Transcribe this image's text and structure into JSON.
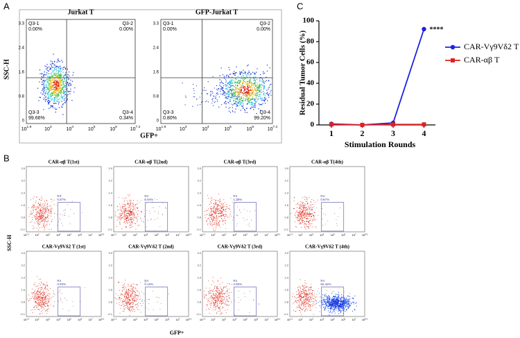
{
  "panel_a": {
    "label": "A",
    "y_axis_label": "SSC-H",
    "x_axis_label": "GFP+",
    "yticks": [
      "0",
      "0.8",
      "1.6",
      "2.4",
      "3.3"
    ],
    "xticks": [
      {
        "base": "10",
        "exp": "1.9"
      },
      {
        "base": "10",
        "exp": "3"
      },
      {
        "base": "10",
        "exp": "4"
      },
      {
        "base": "10",
        "exp": "5"
      },
      {
        "base": "10",
        "exp": "6"
      },
      {
        "base": "10",
        "exp": "7.2"
      }
    ],
    "plots": [
      {
        "title": "Jurkat T",
        "quadrants": [
          {
            "name": "Q3-1",
            "value": "0.00%"
          },
          {
            "name": "Q3-2",
            "value": "0.00%"
          },
          {
            "name": "Q3-3",
            "value": "99.66%"
          },
          {
            "name": "Q3-4",
            "value": "0.34%"
          }
        ]
      },
      {
        "title": "GFP-Jurkat T",
        "quadrants": [
          {
            "name": "Q3-1",
            "value": "0.00%"
          },
          {
            "name": "Q3-2",
            "value": "0.00%"
          },
          {
            "name": "Q3-3",
            "value": "0.80%"
          },
          {
            "name": "Q3-4",
            "value": "99.20%"
          }
        ]
      }
    ]
  },
  "panel_b": {
    "label": "B",
    "y_axis_label": "SSC-H",
    "x_axis_label": "GFP+",
    "yticks": [
      "-0.1",
      "0.8",
      "1.6",
      "2.4",
      "3.2",
      "3.9"
    ],
    "xticks": [
      {
        "base": "10",
        "exp": "1.1"
      },
      {
        "base": "10",
        "exp": "2"
      },
      {
        "base": "10",
        "exp": "3"
      },
      {
        "base": "10",
        "exp": "4"
      },
      {
        "base": "10",
        "exp": "5"
      },
      {
        "base": "10",
        "exp": "6"
      },
      {
        "base": "10",
        "exp": "7"
      },
      {
        "base": "10",
        "exp": "8.2"
      }
    ],
    "plots": [
      {
        "title": "CAR-αβ T(1st)",
        "gate": "R4",
        "percent": "0.87%"
      },
      {
        "title": "CAR-αβ T(2nd)",
        "gate": "R4",
        "percent": "0.94%"
      },
      {
        "title": "CAR-αβ T(3rd)",
        "gate": "R4",
        "percent": "1.38%"
      },
      {
        "title": "CAR-αβ T(4th)",
        "gate": "R4",
        "percent": "0.67%"
      },
      {
        "title": "CAR-Vγ9Vδ2 T (1st)",
        "gate": "R4",
        "percent": "0.83%"
      },
      {
        "title": "CAR-Vγ9Vδ2 T (2nd)",
        "gate": "R4",
        "percent": "0.16%"
      },
      {
        "title": "CAR-Vγ9Vδ2 T (3rd)",
        "gate": "R4",
        "percent": "2.86%"
      },
      {
        "title": "CAR-Vγ9Vδ2 T (4th)",
        "gate": "R4",
        "percent": "91.43%"
      }
    ]
  },
  "chart_data": {
    "type": "line",
    "panel_label": "C",
    "y_label": "Residual Tumor Cells (%)",
    "x_label": "Stimulation Rounds",
    "categories": [
      "1",
      "2",
      "3",
      "4"
    ],
    "series": [
      {
        "name": "CAR-Vγ9Vδ2 T",
        "color": "#1f1fe0",
        "marker": "circle",
        "values": [
          1,
          0,
          2,
          92
        ]
      },
      {
        "name": "CAR-αβ T",
        "color": "#e02020",
        "marker": "square",
        "values": [
          0.5,
          0,
          0.5,
          0.5
        ]
      }
    ],
    "annotation": "****",
    "ylim": [
      0,
      100
    ],
    "yticks": [
      0,
      20,
      40,
      60,
      80,
      100
    ]
  }
}
